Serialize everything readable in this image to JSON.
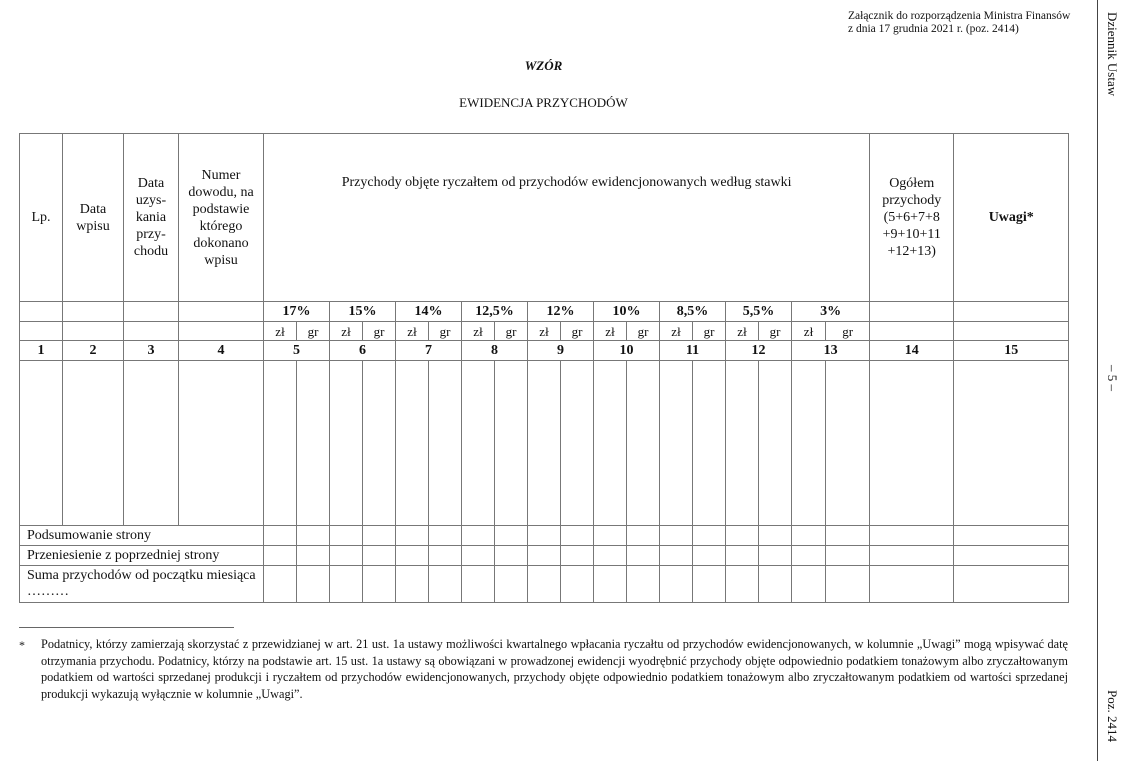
{
  "header": {
    "annex_line1": "Załącznik do rozporządzenia Ministra Finansów",
    "annex_line2": "z dnia 17 grudnia 2021 r. (poz. 2414)",
    "wzor": "WZÓR",
    "title": "EWIDENCJA PRZYCHODÓW"
  },
  "side": {
    "journal": "Dziennik Ustaw",
    "page": "– 5 –",
    "position": "Poz. 2414"
  },
  "table": {
    "headers": {
      "lp": "Lp.",
      "data_wpisu": "Data wpisu",
      "data_uzyskania": "Data uzys-kania przy-chodu",
      "numer_dowodu": "Numer dowodu, na podstawie którego dokonano wpisu",
      "przychody": "Przychody objęte ryczałtem od przychodów ewidencjonowanych według stawki",
      "ogolem": "Ogółem przychody (5+6+7+8 +9+10+11 +12+13)",
      "uwagi": "Uwagi*"
    },
    "rates": [
      "17%",
      "15%",
      "14%",
      "12,5%",
      "12%",
      "10%",
      "8,5%",
      "5,5%",
      "3%"
    ],
    "sub": {
      "zl": "zł",
      "gr": "gr"
    },
    "numbers": [
      "1",
      "2",
      "3",
      "4",
      "5",
      "6",
      "7",
      "8",
      "9",
      "10",
      "11",
      "12",
      "13",
      "14",
      "15"
    ],
    "summary_rows": [
      "Podsumowanie strony",
      "Przeniesienie z poprzedniej strony",
      "Suma przychodów od początku miesiąca ………"
    ]
  },
  "footnote": {
    "marker": "*",
    "text": "Podatnicy, którzy zamierzają skorzystać z przewidzianej w art. 21 ust. 1a ustawy możliwości kwartalnego wpłacania ryczałtu od przychodów ewidencjonowanych, w kolumnie „Uwagi” mogą wpisywać datę otrzymania przychodu. Podatnicy, którzy na podstawie art. 15 ust. 1a ustawy są obowiązani w prowadzonej ewidencji wyodrębnić przychody objęte odpowiednio podatkiem tonażowym albo zryczałtowanym podatkiem od wartości sprzedanej produkcji i ryczałtem od przychodów ewidencjonowanych, przychody objęte odpowiednio podatkiem tonażowym albo zryczałtowanym podatkiem od wartości sprzedanej produkcji wykazują wyłącznie w kolumnie „Uwagi”."
  }
}
